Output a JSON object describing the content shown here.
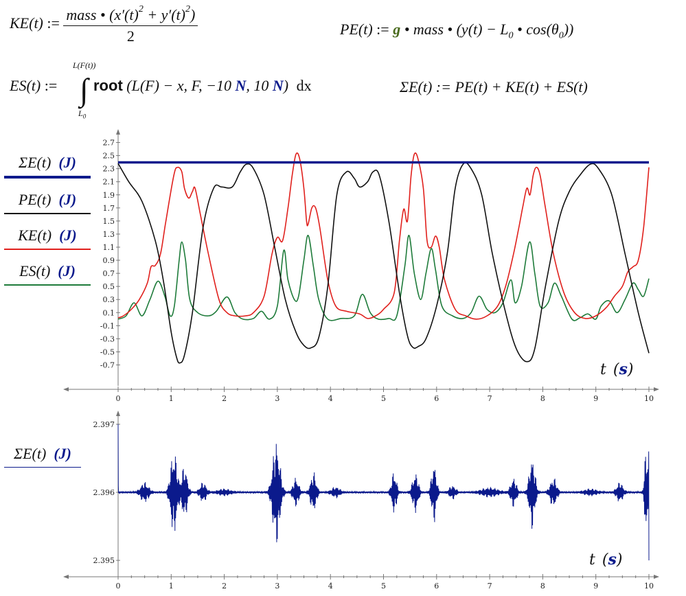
{
  "equations": {
    "ke": {
      "lhs": "KE(t)",
      "assign": ":=",
      "num": "mass • (x′(t)",
      "sq1": "2",
      "plus": "+ y′(t)",
      "sq2": "2",
      "close": ")",
      "den": "2"
    },
    "pe": {
      "lhs": "PE(t)",
      "assign": ":=",
      "g": "g",
      "rest": "• mass • (y(t) − L",
      "sub0": "0",
      "cos": "• cos(θ",
      "sub1": "0",
      "close": "))"
    },
    "es": {
      "lhs": "ES(t)",
      "assign": ":=",
      "upper": "L(F(t))",
      "lower": "L",
      "lower_sub": "0",
      "fn": "root",
      "args_a": "(L(F) − x, F, −10",
      "unit_a": "N",
      "args_b": ", 10",
      "unit_b": "N",
      "args_c": ")",
      "dx": "dx"
    },
    "sum": {
      "text": "ΣE(t) := PE(t) + KE(t) + ES(t)"
    }
  },
  "legend_top": [
    {
      "label": "ΣE(t)",
      "unit": "(J)",
      "color": "#0b1a8c"
    },
    {
      "label": "PE(t)",
      "unit": "(J)",
      "color": "#111111"
    },
    {
      "label": "KE(t)",
      "unit": "(J)",
      "color": "#e0201c"
    },
    {
      "label": "ES(t)",
      "unit": "(J)",
      "color": "#1e7b3a"
    }
  ],
  "legend_bottom": {
    "label": "ΣE(t)",
    "unit": "(J)",
    "color": "#0b1a8c"
  },
  "xlabel": {
    "var": "t",
    "unit": "s"
  },
  "chart_data": [
    {
      "type": "line",
      "xlim": [
        0,
        10
      ],
      "ylim": [
        -0.8,
        2.8
      ],
      "x_ticks": [
        "0",
        "1",
        "2",
        "3",
        "4",
        "5",
        "6",
        "7",
        "8",
        "9",
        "10"
      ],
      "y_ticks": [
        "-0.7",
        "-0.5",
        "-0.3",
        "-0.1",
        "0.1",
        "0.3",
        "0.5",
        "0.7",
        "0.9",
        "1.1",
        "1.3",
        "1.5",
        "1.7",
        "1.9",
        "2.1",
        "2.3",
        "2.5",
        "2.7"
      ],
      "series": [
        {
          "name": "ΣE(t)",
          "color": "#0b1a8c",
          "points": [
            [
              0,
              2.396
            ],
            [
              10,
              2.396
            ]
          ]
        },
        {
          "name": "PE(t)",
          "color": "#111111",
          "points": [
            [
              0,
              2.38
            ],
            [
              0.2,
              2.1
            ],
            [
              0.45,
              1.8
            ],
            [
              0.7,
              1.2
            ],
            [
              0.85,
              0.6
            ],
            [
              1.0,
              -0.2
            ],
            [
              1.1,
              -0.58
            ],
            [
              1.16,
              -0.67
            ],
            [
              1.25,
              -0.55
            ],
            [
              1.4,
              0.1
            ],
            [
              1.6,
              1.4
            ],
            [
              1.8,
              2.0
            ],
            [
              1.95,
              2.02
            ],
            [
              2.15,
              2.02
            ],
            [
              2.3,
              2.25
            ],
            [
              2.42,
              2.37
            ],
            [
              2.55,
              2.3
            ],
            [
              2.75,
              1.9
            ],
            [
              2.95,
              1.1
            ],
            [
              3.15,
              0.3
            ],
            [
              3.35,
              -0.2
            ],
            [
              3.5,
              -0.4
            ],
            [
              3.63,
              -0.44
            ],
            [
              3.78,
              -0.28
            ],
            [
              3.95,
              0.5
            ],
            [
              4.12,
              1.9
            ],
            [
              4.3,
              2.25
            ],
            [
              4.45,
              2.15
            ],
            [
              4.55,
              2.02
            ],
            [
              4.7,
              2.1
            ],
            [
              4.8,
              2.25
            ],
            [
              4.92,
              2.2
            ],
            [
              5.1,
              1.5
            ],
            [
              5.3,
              0.4
            ],
            [
              5.45,
              -0.25
            ],
            [
              5.55,
              -0.43
            ],
            [
              5.65,
              -0.42
            ],
            [
              5.8,
              -0.3
            ],
            [
              6.0,
              0.2
            ],
            [
              6.2,
              1.0
            ],
            [
              6.35,
              2.0
            ],
            [
              6.5,
              2.37
            ],
            [
              6.65,
              2.3
            ],
            [
              6.85,
              1.9
            ],
            [
              7.05,
              1.0
            ],
            [
              7.3,
              0.1
            ],
            [
              7.5,
              -0.45
            ],
            [
              7.7,
              -0.65
            ],
            [
              7.85,
              -0.45
            ],
            [
              8.05,
              0.5
            ],
            [
              8.3,
              1.5
            ],
            [
              8.5,
              1.95
            ],
            [
              8.7,
              2.2
            ],
            [
              8.9,
              2.37
            ],
            [
              9.05,
              2.3
            ],
            [
              9.3,
              1.9
            ],
            [
              9.55,
              1.0
            ],
            [
              9.8,
              0.1
            ],
            [
              10.0,
              -0.52
            ]
          ]
        },
        {
          "name": "KE(t)",
          "color": "#e0201c",
          "points": [
            [
              0,
              0.02
            ],
            [
              0.1,
              0.05
            ],
            [
              0.25,
              0.15
            ],
            [
              0.4,
              0.3
            ],
            [
              0.55,
              0.55
            ],
            [
              0.62,
              0.8
            ],
            [
              0.7,
              0.82
            ],
            [
              0.8,
              1.0
            ],
            [
              0.9,
              1.5
            ],
            [
              1.05,
              2.2
            ],
            [
              1.12,
              2.32
            ],
            [
              1.2,
              2.25
            ],
            [
              1.25,
              2.0
            ],
            [
              1.33,
              1.85
            ],
            [
              1.4,
              1.95
            ],
            [
              1.45,
              2.0
            ],
            [
              1.55,
              1.6
            ],
            [
              1.7,
              1.0
            ],
            [
              1.9,
              0.3
            ],
            [
              2.05,
              0.1
            ],
            [
              2.2,
              0.05
            ],
            [
              2.4,
              0.05
            ],
            [
              2.55,
              0.1
            ],
            [
              2.75,
              0.35
            ],
            [
              2.9,
              1.0
            ],
            [
              3.0,
              1.25
            ],
            [
              3.1,
              1.2
            ],
            [
              3.2,
              1.7
            ],
            [
              3.28,
              2.2
            ],
            [
              3.35,
              2.52
            ],
            [
              3.42,
              2.45
            ],
            [
              3.5,
              2.0
            ],
            [
              3.55,
              1.5
            ],
            [
              3.58,
              1.45
            ],
            [
              3.65,
              1.7
            ],
            [
              3.72,
              1.7
            ],
            [
              3.8,
              1.4
            ],
            [
              3.95,
              0.6
            ],
            [
              4.1,
              0.2
            ],
            [
              4.3,
              0.12
            ],
            [
              4.55,
              0.08
            ],
            [
              4.7,
              0.01
            ],
            [
              4.85,
              0.05
            ],
            [
              5.0,
              0.15
            ],
            [
              5.2,
              0.4
            ],
            [
              5.3,
              1.2
            ],
            [
              5.38,
              1.68
            ],
            [
              5.45,
              1.5
            ],
            [
              5.52,
              2.2
            ],
            [
              5.58,
              2.52
            ],
            [
              5.65,
              2.45
            ],
            [
              5.75,
              2.0
            ],
            [
              5.82,
              1.2
            ],
            [
              5.9,
              1.1
            ],
            [
              5.98,
              1.27
            ],
            [
              6.05,
              1.1
            ],
            [
              6.15,
              0.6
            ],
            [
              6.35,
              0.15
            ],
            [
              6.55,
              0.05
            ],
            [
              6.75,
              0.0
            ],
            [
              6.95,
              0.05
            ],
            [
              7.15,
              0.2
            ],
            [
              7.3,
              0.5
            ],
            [
              7.45,
              1.0
            ],
            [
              7.55,
              1.4
            ],
            [
              7.62,
              1.7
            ],
            [
              7.7,
              2.0
            ],
            [
              7.76,
              1.9
            ],
            [
              7.82,
              2.2
            ],
            [
              7.88,
              2.32
            ],
            [
              7.95,
              2.2
            ],
            [
              8.05,
              1.7
            ],
            [
              8.2,
              1.0
            ],
            [
              8.4,
              0.4
            ],
            [
              8.6,
              0.1
            ],
            [
              8.8,
              0.01
            ],
            [
              9.0,
              0.05
            ],
            [
              9.2,
              0.18
            ],
            [
              9.35,
              0.35
            ],
            [
              9.5,
              0.5
            ],
            [
              9.6,
              0.72
            ],
            [
              9.7,
              0.8
            ],
            [
              9.8,
              0.9
            ],
            [
              9.9,
              1.4
            ],
            [
              10.0,
              2.32
            ]
          ]
        },
        {
          "name": "ES(t)",
          "color": "#1e7b3a",
          "points": [
            [
              0,
              0.0
            ],
            [
              0.15,
              0.05
            ],
            [
              0.3,
              0.25
            ],
            [
              0.45,
              0.05
            ],
            [
              0.6,
              0.3
            ],
            [
              0.75,
              0.58
            ],
            [
              0.88,
              0.35
            ],
            [
              0.98,
              0.05
            ],
            [
              1.06,
              0.2
            ],
            [
              1.15,
              0.9
            ],
            [
              1.2,
              1.18
            ],
            [
              1.27,
              0.9
            ],
            [
              1.35,
              0.3
            ],
            [
              1.5,
              0.1
            ],
            [
              1.7,
              0.05
            ],
            [
              1.85,
              0.12
            ],
            [
              2.05,
              0.34
            ],
            [
              2.2,
              0.1
            ],
            [
              2.35,
              0.0
            ],
            [
              2.55,
              0.01
            ],
            [
              2.7,
              0.12
            ],
            [
              2.85,
              0.0
            ],
            [
              3.0,
              0.2
            ],
            [
              3.12,
              1.05
            ],
            [
              3.2,
              0.6
            ],
            [
              3.32,
              0.3
            ],
            [
              3.4,
              0.35
            ],
            [
              3.5,
              0.9
            ],
            [
              3.58,
              1.28
            ],
            [
              3.68,
              0.8
            ],
            [
              3.78,
              0.3
            ],
            [
              3.95,
              0.0
            ],
            [
              4.2,
              0.01
            ],
            [
              4.45,
              0.05
            ],
            [
              4.6,
              0.38
            ],
            [
              4.75,
              0.1
            ],
            [
              4.9,
              0.0
            ],
            [
              5.1,
              0.01
            ],
            [
              5.25,
              0.05
            ],
            [
              5.4,
              0.8
            ],
            [
              5.48,
              1.28
            ],
            [
              5.58,
              0.7
            ],
            [
              5.7,
              0.3
            ],
            [
              5.8,
              0.7
            ],
            [
              5.9,
              1.08
            ],
            [
              5.98,
              0.75
            ],
            [
              6.1,
              0.2
            ],
            [
              6.3,
              0.05
            ],
            [
              6.5,
              0.01
            ],
            [
              6.65,
              0.1
            ],
            [
              6.8,
              0.35
            ],
            [
              6.95,
              0.15
            ],
            [
              7.1,
              0.1
            ],
            [
              7.25,
              0.25
            ],
            [
              7.4,
              0.6
            ],
            [
              7.48,
              0.25
            ],
            [
              7.6,
              0.5
            ],
            [
              7.75,
              1.18
            ],
            [
              7.85,
              0.7
            ],
            [
              7.95,
              0.2
            ],
            [
              8.1,
              0.25
            ],
            [
              8.22,
              0.55
            ],
            [
              8.35,
              0.35
            ],
            [
              8.55,
              0.0
            ],
            [
              8.7,
              0.02
            ],
            [
              8.85,
              0.08
            ],
            [
              9.0,
              0.0
            ],
            [
              9.1,
              0.2
            ],
            [
              9.25,
              0.28
            ],
            [
              9.4,
              0.1
            ],
            [
              9.55,
              0.3
            ],
            [
              9.7,
              0.55
            ],
            [
              9.8,
              0.45
            ],
            [
              9.9,
              0.35
            ],
            [
              10.0,
              0.62
            ]
          ]
        }
      ]
    },
    {
      "type": "line",
      "xlim": [
        0,
        10
      ],
      "ylim": [
        2.3949,
        2.3971
      ],
      "x_ticks": [
        "0",
        "1",
        "2",
        "3",
        "4",
        "5",
        "6",
        "7",
        "8",
        "9",
        "10"
      ],
      "y_ticks": [
        "2.395",
        "2.396",
        "2.397"
      ],
      "series": [
        {
          "name": "ΣE(t)",
          "color": "#0b1a8c",
          "baseline": 2.396,
          "bursts": [
            {
              "t": 0.5,
              "amp": 0.00015,
              "w": 0.1
            },
            {
              "t": 1.05,
              "amp": 0.00065,
              "w": 0.08
            },
            {
              "t": 1.25,
              "amp": 0.0004,
              "w": 0.07
            },
            {
              "t": 1.6,
              "amp": 0.00015,
              "w": 0.08
            },
            {
              "t": 2.0,
              "amp": 5e-05,
              "w": 0.15
            },
            {
              "t": 2.98,
              "amp": 0.0008,
              "w": 0.09
            },
            {
              "t": 3.35,
              "amp": 0.00022,
              "w": 0.07
            },
            {
              "t": 3.68,
              "amp": 0.0003,
              "w": 0.07
            },
            {
              "t": 4.1,
              "amp": 8e-05,
              "w": 0.1
            },
            {
              "t": 5.2,
              "amp": 0.00032,
              "w": 0.06
            },
            {
              "t": 5.6,
              "amp": 0.0003,
              "w": 0.07
            },
            {
              "t": 5.95,
              "amp": 0.00045,
              "w": 0.06
            },
            {
              "t": 6.3,
              "amp": 0.0001,
              "w": 0.08
            },
            {
              "t": 7.0,
              "amp": 7e-05,
              "w": 0.2
            },
            {
              "t": 7.45,
              "amp": 0.00022,
              "w": 0.07
            },
            {
              "t": 7.8,
              "amp": 0.00055,
              "w": 0.07
            },
            {
              "t": 8.2,
              "amp": 0.00022,
              "w": 0.08
            },
            {
              "t": 8.9,
              "amp": 5e-05,
              "w": 0.15
            },
            {
              "t": 9.45,
              "amp": 0.00015,
              "w": 0.08
            },
            {
              "t": 9.95,
              "amp": 0.0007,
              "w": 0.04
            }
          ]
        }
      ]
    }
  ]
}
